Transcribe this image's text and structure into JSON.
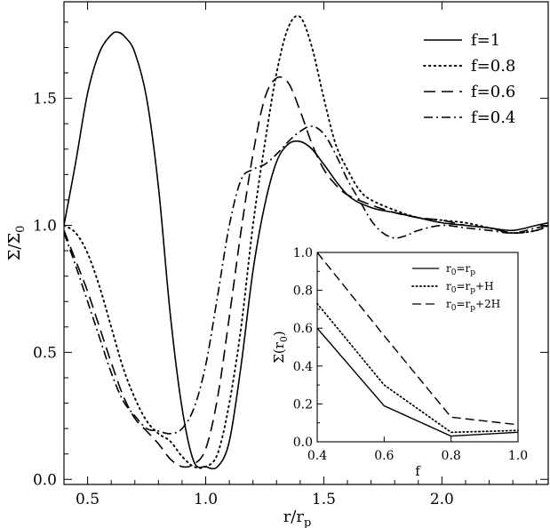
{
  "chart_data": [
    {
      "type": "line",
      "title": "",
      "xlabel": "r/r",
      "xlabel_sub": "p",
      "ylabel": "Σ/Σ",
      "ylabel_sub": "0",
      "xlim": [
        0.4,
        2.45
      ],
      "ylim": [
        -0.02,
        1.88
      ],
      "xticks": [
        0.5,
        1.0,
        1.5,
        2.0
      ],
      "xtick_labels": [
        "0.5",
        "1.0",
        "1.5",
        "2.0"
      ],
      "yticks": [
        0.0,
        0.5,
        1.0,
        1.5
      ],
      "ytick_labels": [
        "0.0",
        "0.5",
        "1.0",
        "1.5"
      ],
      "grid": false,
      "legend_position": "top-right",
      "series": [
        {
          "name": "f=1",
          "dash": "solid",
          "x": [
            0.4,
            0.45,
            0.5,
            0.55,
            0.6,
            0.63,
            0.66,
            0.7,
            0.75,
            0.8,
            0.85,
            0.9,
            0.95,
            1.0,
            1.05,
            1.1,
            1.15,
            1.2,
            1.25,
            1.3,
            1.35,
            1.4,
            1.45,
            1.5,
            1.6,
            1.7,
            1.8,
            1.9,
            2.0,
            2.1,
            2.2,
            2.3,
            2.4,
            2.45
          ],
          "y": [
            1.0,
            1.25,
            1.52,
            1.68,
            1.75,
            1.76,
            1.74,
            1.68,
            1.5,
            1.15,
            0.65,
            0.28,
            0.07,
            0.05,
            0.05,
            0.15,
            0.45,
            0.82,
            1.08,
            1.25,
            1.32,
            1.33,
            1.3,
            1.24,
            1.12,
            1.07,
            1.05,
            1.03,
            1.01,
            1.0,
            0.99,
            0.98,
            1.0,
            1.01
          ]
        },
        {
          "name": "f=0.8",
          "dash": "dotted",
          "x": [
            0.4,
            0.45,
            0.5,
            0.55,
            0.6,
            0.65,
            0.7,
            0.75,
            0.8,
            0.85,
            0.9,
            0.95,
            1.0,
            1.05,
            1.1,
            1.15,
            1.2,
            1.25,
            1.3,
            1.35,
            1.4,
            1.45,
            1.5,
            1.55,
            1.6,
            1.65,
            1.7,
            1.8,
            1.9,
            2.0,
            2.1,
            2.2,
            2.3,
            2.4,
            2.45
          ],
          "y": [
            1.0,
            0.97,
            0.89,
            0.76,
            0.6,
            0.44,
            0.32,
            0.23,
            0.18,
            0.15,
            0.09,
            0.05,
            0.05,
            0.1,
            0.3,
            0.6,
            1.0,
            1.32,
            1.6,
            1.78,
            1.82,
            1.7,
            1.5,
            1.32,
            1.22,
            1.14,
            1.1,
            1.06,
            1.03,
            1.02,
            1.01,
            0.99,
            0.97,
            0.98,
            1.0
          ]
        },
        {
          "name": "f=0.6",
          "dash": "dashed",
          "x": [
            0.4,
            0.45,
            0.5,
            0.55,
            0.6,
            0.65,
            0.7,
            0.75,
            0.8,
            0.85,
            0.9,
            0.95,
            1.0,
            1.05,
            1.1,
            1.15,
            1.2,
            1.25,
            1.3,
            1.35,
            1.4,
            1.45,
            1.5,
            1.55,
            1.6,
            1.7,
            1.8,
            1.9,
            2.0,
            2.1,
            2.2,
            2.3,
            2.4,
            2.45
          ],
          "y": [
            0.98,
            0.86,
            0.74,
            0.6,
            0.46,
            0.33,
            0.24,
            0.19,
            0.14,
            0.08,
            0.05,
            0.06,
            0.12,
            0.32,
            0.64,
            0.98,
            1.28,
            1.5,
            1.58,
            1.56,
            1.45,
            1.32,
            1.22,
            1.16,
            1.12,
            1.08,
            1.05,
            1.03,
            1.02,
            1.0,
            0.99,
            0.97,
            0.98,
            1.0
          ]
        },
        {
          "name": "f=0.4",
          "dash": "dashdot",
          "x": [
            0.4,
            0.45,
            0.5,
            0.55,
            0.6,
            0.65,
            0.7,
            0.75,
            0.8,
            0.85,
            0.9,
            0.95,
            1.0,
            1.05,
            1.1,
            1.15,
            1.2,
            1.25,
            1.3,
            1.35,
            1.4,
            1.45,
            1.5,
            1.55,
            1.6,
            1.65,
            1.7,
            1.75,
            1.8,
            1.85,
            1.9,
            2.0,
            2.1,
            2.2,
            2.3,
            2.4,
            2.45
          ],
          "y": [
            0.97,
            0.84,
            0.7,
            0.56,
            0.42,
            0.31,
            0.25,
            0.2,
            0.19,
            0.18,
            0.2,
            0.28,
            0.45,
            0.72,
            1.0,
            1.18,
            1.22,
            1.24,
            1.28,
            1.33,
            1.37,
            1.39,
            1.36,
            1.28,
            1.18,
            1.1,
            1.02,
            0.97,
            0.95,
            0.96,
            0.98,
            1.0,
            0.99,
            0.98,
            0.97,
            0.99,
            1.0
          ]
        }
      ]
    },
    {
      "type": "line",
      "title": "",
      "xlabel": "f",
      "ylabel": "Σ(r",
      "ylabel_sub": "0",
      "ylabel_suffix": ")",
      "xlim": [
        0.4,
        1.0
      ],
      "ylim": [
        0.0,
        1.0
      ],
      "xticks": [
        0.4,
        0.6,
        0.8,
        1.0
      ],
      "xtick_labels": [
        "0.4",
        "0.6",
        "0.8",
        "1.0"
      ],
      "yticks": [
        0.0,
        0.2,
        0.4,
        0.6,
        0.8,
        1.0
      ],
      "ytick_labels": [
        "0.0",
        "0.2",
        "0.4",
        "0.6",
        "0.8",
        "1.0"
      ],
      "grid": false,
      "legend_position": "top-right",
      "series": [
        {
          "name": "r0=rp",
          "legend_parts": [
            "r",
            "0",
            "=r",
            "p",
            ""
          ],
          "dash": "solid",
          "x": [
            0.4,
            0.6,
            0.8,
            1.0
          ],
          "y": [
            0.6,
            0.19,
            0.03,
            0.05
          ]
        },
        {
          "name": "r0=rp+H",
          "legend_parts": [
            "r",
            "0",
            "=r",
            "p",
            "+H"
          ],
          "dash": "dotted",
          "x": [
            0.4,
            0.6,
            0.8,
            1.0
          ],
          "y": [
            0.73,
            0.3,
            0.05,
            0.06
          ]
        },
        {
          "name": "r0=rp+2H",
          "legend_parts": [
            "r",
            "0",
            "=r",
            "p",
            "+2H"
          ],
          "dash": "dashed",
          "x": [
            0.4,
            0.6,
            0.8,
            1.0
          ],
          "y": [
            1.0,
            0.56,
            0.13,
            0.09
          ]
        }
      ]
    }
  ]
}
